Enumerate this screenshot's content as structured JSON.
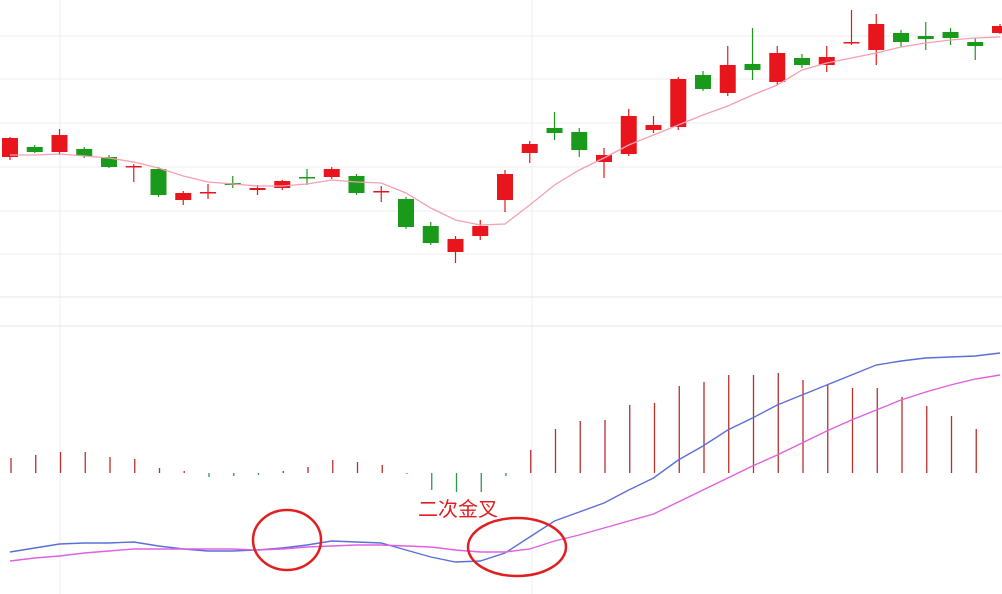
{
  "chart_data": [
    {
      "type": "candlestick",
      "up_color": "#e8161c",
      "down_color": "#1a9a1a",
      "open": [
        143,
        153,
        148,
        151,
        143,
        133,
        131,
        100,
        107,
        117,
        110,
        112,
        123,
        123,
        124,
        108,
        101,
        74,
        48,
        64,
        100,
        147,
        172,
        168,
        138,
        146,
        170,
        173,
        225,
        207,
        236,
        218,
        242,
        235,
        257,
        250,
        267,
        264,
        268,
        258,
        267
      ],
      "close": [
        162,
        148,
        165,
        144,
        133,
        134,
        105,
        107,
        108,
        115,
        112,
        119,
        122,
        131,
        107,
        109,
        73,
        57,
        61,
        74,
        126,
        156,
        167,
        150,
        145,
        184,
        175,
        221,
        211,
        235,
        230,
        247,
        235,
        243,
        258,
        276,
        258,
        261,
        262,
        254,
        274
      ],
      "high": [
        163,
        155,
        171,
        153,
        145,
        136,
        133,
        109,
        116,
        124,
        115,
        120,
        131,
        133,
        126,
        114,
        103,
        78,
        64,
        80,
        130,
        159,
        188,
        172,
        152,
        191,
        184,
        223,
        229,
        254,
        272,
        254,
        246,
        254,
        290,
        286,
        270,
        278,
        272,
        262,
        276
      ],
      "low": [
        140,
        147,
        145,
        142,
        132,
        118,
        103,
        95,
        101,
        112,
        105,
        110,
        115,
        121,
        105,
        98,
        71,
        55,
        37,
        60,
        88,
        137,
        160,
        143,
        122,
        144,
        167,
        170,
        209,
        204,
        220,
        215,
        232,
        228,
        255,
        235,
        253,
        250,
        255,
        240,
        266
      ],
      "ma": {
        "color": "#f4a0b0",
        "values": [
          145,
          145,
          146,
          144,
          142,
          138,
          132,
          124,
          118,
          116,
          114,
          114,
          116,
          120,
          118,
          117,
          107,
          92,
          80,
          75,
          76,
          95,
          115,
          130,
          142,
          155,
          165,
          175,
          185,
          194,
          205,
          215,
          230,
          237,
          242,
          247,
          253,
          257,
          260,
          262,
          263
        ]
      },
      "ylim": [
        0,
        300
      ],
      "yticks": [
        46,
        89,
        133,
        177,
        221,
        264
      ],
      "grid": true
    },
    {
      "type": "macd",
      "up_color": "#b8302a",
      "down_color": "#2a9a4a",
      "histogram": [
        15,
        18,
        21,
        21,
        16,
        14,
        5,
        2,
        -4,
        -3,
        -2,
        2,
        6,
        13,
        11,
        8,
        -1,
        -17,
        -19,
        -19,
        -3,
        23,
        44,
        52,
        53,
        68,
        70,
        87,
        91,
        98,
        98,
        100,
        93,
        89,
        85,
        85,
        76,
        67,
        57,
        44,
        null
      ],
      "lines": [
        {
          "color": "#5a6fd8",
          "values": [
            -79,
            -75,
            -71,
            -70,
            -70,
            -69,
            -73,
            -76,
            -78,
            -78,
            -77,
            -75,
            -72,
            -68,
            -69,
            -70,
            -77,
            -84,
            -89,
            -88,
            -80,
            -64,
            -48,
            -39,
            -30,
            -17,
            -5,
            13,
            27,
            43,
            55,
            68,
            78,
            88,
            98,
            108,
            112,
            115,
            116,
            117,
            120
          ]
        },
        {
          "color": "#e060e0",
          "values": [
            -88,
            -85,
            -83,
            -80,
            -78,
            -76,
            -76,
            -76,
            -76,
            -76,
            -77,
            -76,
            -74,
            -73,
            -72,
            -72,
            -73,
            -74,
            -77,
            -79,
            -79,
            -76,
            -68,
            -62,
            -55,
            -48,
            -41,
            -29,
            -17,
            -5,
            7,
            18,
            30,
            42,
            53,
            63,
            73,
            81,
            88,
            94,
            98
          ]
        }
      ],
      "ylim": [
        -121,
        148
      ],
      "annotation": "二次金叉"
    }
  ]
}
